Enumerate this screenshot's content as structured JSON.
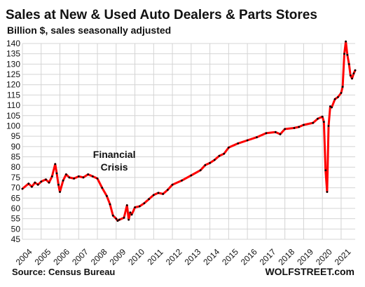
{
  "chart_data": {
    "type": "line",
    "title": "Sales at New & Used Auto Dealers & Parts Stores",
    "subtitle": "Billion $, sales seasonally adjusted",
    "source": "Source: Census Bureau",
    "brand": "WOLFSTREET.com",
    "ylim": [
      45,
      140
    ],
    "y_ticks": [
      45,
      50,
      55,
      60,
      65,
      70,
      75,
      80,
      85,
      90,
      95,
      100,
      105,
      110,
      115,
      120,
      125,
      130,
      135,
      140
    ],
    "xlim": [
      2004,
      2021.75
    ],
    "x_ticks": [
      2004,
      2005,
      2006,
      2007,
      2008,
      2009,
      2010,
      2011,
      2012,
      2013,
      2014,
      2015,
      2016,
      2017,
      2018,
      2019,
      2020,
      2021
    ],
    "x_tick_labels": [
      "2004",
      "2005",
      "2006",
      "2007",
      "2008",
      "2009",
      "2010",
      "2011",
      "2012",
      "2013",
      "2014",
      "2015",
      "2016",
      "2017",
      "2018",
      "2019",
      "2020",
      "2021"
    ],
    "grid": true,
    "annotations": [
      {
        "lines": [
          "Financial",
          "Crisis"
        ],
        "x": 2008.9,
        "y": 84.5
      }
    ],
    "series": [
      {
        "color": "#ff0000",
        "marker_color": "#000000",
        "x": [
          2004.0,
          2004.33,
          2004.5,
          2004.67,
          2004.83,
          2005.0,
          2005.25,
          2005.42,
          2005.58,
          2005.75,
          2005.83,
          2005.92,
          2006.0,
          2006.17,
          2006.33,
          2006.5,
          2006.75,
          2007.0,
          2007.25,
          2007.5,
          2007.75,
          2008.0,
          2008.25,
          2008.5,
          2008.67,
          2008.83,
          2009.0,
          2009.08,
          2009.17,
          2009.42,
          2009.58,
          2009.67,
          2009.75,
          2009.83,
          2010.0,
          2010.25,
          2010.5,
          2010.75,
          2011.0,
          2011.25,
          2011.5,
          2011.75,
          2012.0,
          2012.5,
          2013.0,
          2013.5,
          2013.75,
          2014.0,
          2014.25,
          2014.5,
          2014.75,
          2015.0,
          2015.5,
          2016.0,
          2016.5,
          2017.0,
          2017.5,
          2017.75,
          2018.0,
          2018.5,
          2018.75,
          2019.0,
          2019.5,
          2019.75,
          2020.0,
          2020.08,
          2020.17,
          2020.25,
          2020.33,
          2020.42,
          2020.5,
          2020.67,
          2020.83,
          2021.0,
          2021.08,
          2021.17,
          2021.25,
          2021.33,
          2021.42,
          2021.5,
          2021.58,
          2021.67,
          2021.75
        ],
        "y": [
          69.5,
          72.0,
          70.5,
          72.5,
          71.5,
          73.0,
          74.0,
          72.5,
          75.5,
          81.5,
          77.0,
          71.5,
          68.0,
          73.5,
          76.5,
          75.0,
          74.5,
          75.5,
          75.0,
          76.5,
          75.5,
          74.5,
          70.0,
          66.0,
          62.0,
          56.5,
          55.0,
          54.0,
          54.5,
          55.5,
          61.5,
          54.5,
          58.0,
          57.0,
          60.5,
          61.0,
          62.5,
          64.5,
          66.5,
          67.5,
          67.0,
          69.0,
          71.5,
          73.5,
          76.0,
          78.5,
          81.0,
          82.0,
          83.5,
          85.5,
          86.5,
          89.5,
          91.5,
          93.0,
          94.5,
          96.5,
          97.0,
          96.0,
          98.5,
          99.0,
          99.5,
          100.5,
          101.5,
          103.5,
          104.5,
          102.0,
          78.5,
          68.0,
          100.0,
          109.5,
          109.0,
          113.0,
          114.0,
          116.0,
          119.0,
          135.0,
          141.0,
          134.5,
          130.0,
          124.5,
          123.0,
          125.5,
          127.0
        ]
      }
    ]
  }
}
